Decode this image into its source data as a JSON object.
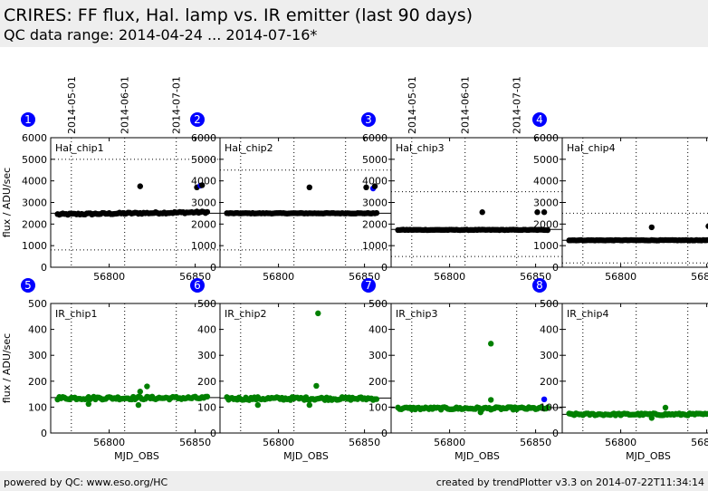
{
  "header": {
    "title": "CRIRES: FF flux, Hal. lamp vs. IR emitter (last 90 days)",
    "subtitle": "QC data range: 2014-04-24 ... 2014-07-16*"
  },
  "footer": {
    "left": "powered by QC: www.eso.org/HC",
    "right": "created by trendPlotter v3.3 on 2014-07-22T11:34:14"
  },
  "colors": {
    "black": "#000000",
    "green": "#008000",
    "blue": "#0000ff",
    "badge": "#0000ff"
  },
  "chart_data": {
    "type": "scatter",
    "x_axis": {
      "label": "MJD_OBS",
      "range": [
        56766,
        56866
      ],
      "ticks": [
        56800,
        56850
      ]
    },
    "date_markers": {
      "labels": [
        "2014-05-01",
        "2014-06-01",
        "2014-07-01"
      ],
      "mjd": [
        56778,
        56809,
        56839
      ]
    },
    "panels": [
      {
        "badge": "1",
        "name": "Hal_chip1",
        "ylabel": "flux / ADU/sec",
        "ylim": [
          0,
          6000
        ],
        "yticks": [
          0,
          1000,
          2000,
          3000,
          4000,
          5000,
          6000
        ],
        "mean": 2500,
        "limits": [
          800,
          5000
        ],
        "color": "#000000",
        "base": 2500,
        "noise": 40,
        "trend": 1.2,
        "outliers": [
          [
            56818,
            3750,
            "#000000"
          ],
          [
            56851,
            3700,
            "#000000"
          ],
          [
            56853,
            3780,
            "#0000ff"
          ],
          [
            56854,
            3800,
            "#000000"
          ]
        ]
      },
      {
        "badge": "2",
        "name": "Hal_chip2",
        "ylabel": "",
        "ylim": [
          0,
          6000
        ],
        "yticks": [
          0,
          1000,
          2000,
          3000,
          4000,
          5000,
          6000
        ],
        "mean": 2500,
        "limits": [
          800,
          4500
        ],
        "color": "#000000",
        "base": 2500,
        "noise": 15,
        "trend": 0,
        "outliers": [
          [
            56818,
            3700,
            "#000000"
          ],
          [
            56851,
            3700,
            "#000000"
          ],
          [
            56855,
            3650,
            "#0000ff"
          ],
          [
            56856,
            3750,
            "#000000"
          ]
        ]
      },
      {
        "badge": "3",
        "name": "Hal_chip3",
        "ylabel": "",
        "ylim": [
          0,
          6000
        ],
        "yticks": [
          0,
          1000,
          2000,
          3000,
          4000,
          5000,
          6000
        ],
        "mean": 1750,
        "limits": [
          500,
          3500
        ],
        "color": "#000000",
        "base": 1730,
        "noise": 12,
        "trend": 0,
        "outliers": [
          [
            56819,
            2550,
            "#000000"
          ],
          [
            56851,
            2550,
            "#000000"
          ],
          [
            56855,
            2550,
            "#000000"
          ]
        ]
      },
      {
        "badge": "4",
        "name": "Hal_chip4",
        "ylabel": "",
        "ylim": [
          0,
          6000
        ],
        "yticks": [
          0,
          1000,
          2000,
          3000,
          4000,
          5000,
          6000
        ],
        "mean": 1250,
        "limits": [
          200,
          2500
        ],
        "color": "#000000",
        "base": 1250,
        "noise": 12,
        "trend": 0,
        "outliers": [
          [
            56818,
            1850,
            "#000000"
          ],
          [
            56851,
            1900,
            "#000000"
          ],
          [
            56855,
            1880,
            "#000000"
          ]
        ]
      },
      {
        "badge": "5",
        "name": "IR_chip1",
        "ylabel": "flux / ADU/sec",
        "ylim": [
          0,
          500
        ],
        "yticks": [
          0,
          100,
          200,
          300,
          400,
          500
        ],
        "mean": 137,
        "limits": [],
        "color": "#008000",
        "base": 135,
        "noise": 6,
        "trend": 0,
        "outliers": [
          [
            56822,
            180,
            "#008000"
          ],
          [
            56817,
            108,
            "#008000"
          ],
          [
            56818,
            160,
            "#008000"
          ],
          [
            56788,
            112,
            "#008000"
          ]
        ]
      },
      {
        "badge": "6",
        "name": "IR_chip2",
        "ylabel": "",
        "ylim": [
          0,
          500
        ],
        "yticks": [
          0,
          100,
          200,
          300,
          400,
          500
        ],
        "mean": 135,
        "limits": [],
        "color": "#008000",
        "base": 133,
        "noise": 6,
        "trend": 0,
        "outliers": [
          [
            56823,
            462,
            "#008000"
          ],
          [
            56822,
            182,
            "#008000"
          ],
          [
            56818,
            108,
            "#008000"
          ],
          [
            56788,
            108,
            "#008000"
          ]
        ]
      },
      {
        "badge": "7",
        "name": "IR_chip3",
        "ylabel": "",
        "ylim": [
          0,
          500
        ],
        "yticks": [
          0,
          100,
          200,
          300,
          400,
          500
        ],
        "mean": 98,
        "limits": [],
        "color": "#008000",
        "base": 95,
        "noise": 5,
        "trend": 0,
        "outliers": [
          [
            56824,
            345,
            "#008000"
          ],
          [
            56824,
            128,
            "#008000"
          ],
          [
            56855,
            130,
            "#0000ff"
          ],
          [
            56818,
            80,
            "#008000"
          ]
        ]
      },
      {
        "badge": "8",
        "name": "IR_chip4",
        "ylabel": "",
        "ylim": [
          0,
          500
        ],
        "yticks": [
          0,
          100,
          200,
          300,
          400,
          500
        ],
        "mean": 72,
        "limits": [],
        "color": "#008000",
        "base": 72,
        "noise": 4,
        "trend": 0,
        "outliers": [
          [
            56826,
            98,
            "#008000"
          ],
          [
            56855,
            130,
            "#0000ff"
          ],
          [
            56818,
            58,
            "#008000"
          ]
        ]
      }
    ]
  }
}
